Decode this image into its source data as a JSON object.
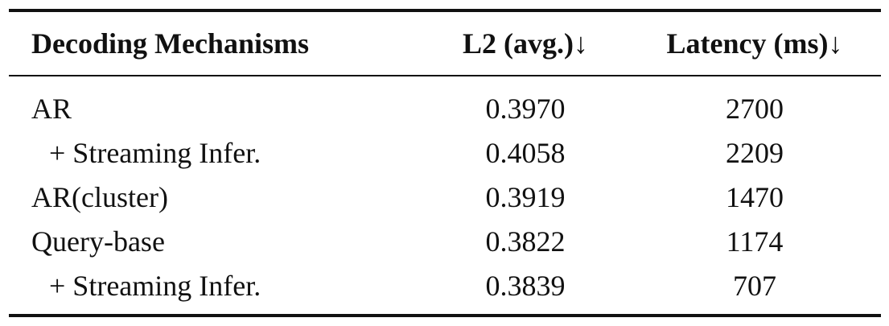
{
  "table": {
    "headers": [
      "Decoding Mechanisms",
      "L2 (avg.)↓",
      "Latency (ms)↓"
    ],
    "rows": [
      {
        "method": "AR",
        "l2": "0.3970",
        "latency": "2700",
        "indent": false
      },
      {
        "method": "+ Streaming Infer.",
        "l2": "0.4058",
        "latency": "2209",
        "indent": true
      },
      {
        "method": "AR(cluster)",
        "l2": "0.3919",
        "latency": "1470",
        "indent": false
      },
      {
        "method": "Query-base",
        "l2": "0.3822",
        "latency": "1174",
        "indent": false
      },
      {
        "method": "+ Streaming Infer.",
        "l2": "0.3839",
        "latency": "707",
        "indent": true
      }
    ]
  }
}
